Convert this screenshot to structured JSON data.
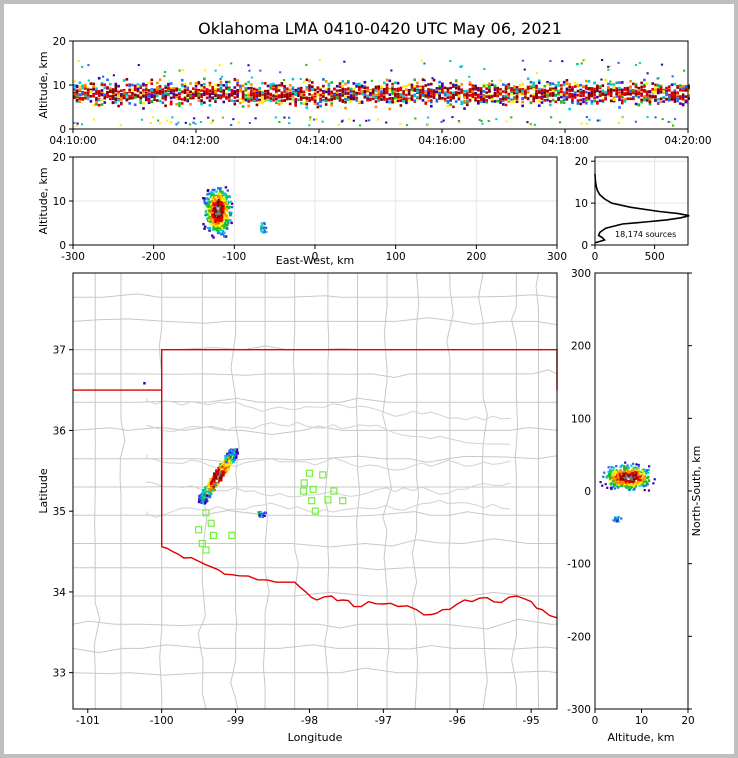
{
  "figure": {
    "title": "Oklahoma LMA 0410-0420 UTC May 06, 2021",
    "source_count_label": "18,174 sources"
  },
  "colors": {
    "state_border": "#e00000",
    "county_lines": "#c8c8c8",
    "stations": "#77ee44",
    "frame_gray": "#bfbfbf",
    "density_scale": [
      "#3b00aa",
      "#2266ff",
      "#00cccc",
      "#22bb22",
      "#ffee00",
      "#ff8800",
      "#dd0000",
      "#880000",
      "#777777",
      "#e8e8e8"
    ]
  },
  "chart_data": [
    {
      "id": "time_height",
      "type": "heatmap",
      "title": "Oklahoma LMA 0410-0420 UTC May 06, 2021",
      "xlabel": "",
      "ylabel": "Altitude, km",
      "x_ticks": [
        "04:10:00",
        "04:12:00",
        "04:14:00",
        "04:16:00",
        "04:18:00",
        "04:20:00"
      ],
      "y_ticks": [
        0,
        10,
        20
      ],
      "xlim": [
        "04:10:00",
        "04:20:00"
      ],
      "ylim": [
        0,
        20
      ],
      "altitude_band_km": [
        2,
        12
      ],
      "peak_altitude_km": 8
    },
    {
      "id": "east_west_altitude",
      "type": "heatmap",
      "xlabel": "East-West, km",
      "ylabel": "Altitude, km",
      "x_ticks": [
        -300,
        -200,
        -100,
        0,
        100,
        200,
        300
      ],
      "y_ticks": [
        0,
        10,
        20
      ],
      "xlim": [
        -300,
        300
      ],
      "ylim": [
        0,
        20
      ],
      "clusters": [
        {
          "x_center_km": -120,
          "x_half_width_km": 22,
          "z_center_km": 8,
          "z_half_height_km": 7
        },
        {
          "x_center_km": -65,
          "x_half_width_km": 4,
          "z_center_km": 4,
          "z_half_height_km": 2
        }
      ]
    },
    {
      "id": "altitude_histogram",
      "type": "line",
      "xlabel": "",
      "ylabel": "",
      "x_ticks": [
        0,
        500
      ],
      "y_ticks": [
        0,
        10,
        20
      ],
      "xlim": [
        0,
        780
      ],
      "ylim": [
        0,
        21
      ],
      "annotation": "18,174 sources",
      "series": [
        {
          "altitude_km": [
            0.5,
            1.2,
            1.8,
            2.3,
            3.0,
            4.0,
            5.0,
            5.5,
            6.0,
            6.5,
            7.0,
            7.5,
            8.0,
            9.0,
            10.0,
            11.0,
            12.0,
            13.0,
            14.0,
            15.0,
            16.0,
            17.0
          ],
          "count": [
            0,
            80,
            60,
            30,
            40,
            90,
            230,
            420,
            600,
            720,
            790,
            700,
            540,
            300,
            140,
            80,
            40,
            20,
            10,
            5,
            2,
            0
          ]
        }
      ]
    },
    {
      "id": "plan_view",
      "type": "scatter",
      "xlabel": "Longitude",
      "ylabel": "Latitude",
      "x_ticks": [
        -101,
        -100,
        -99,
        -98,
        -97,
        -96,
        -95
      ],
      "y_ticks": [
        33,
        34,
        35,
        36,
        37
      ],
      "xlim": [
        -101.2,
        -94.65
      ],
      "ylim": [
        32.55,
        37.95
      ],
      "clusters": [
        {
          "lon_center": -99.25,
          "lat_center": 35.45,
          "lon_half_width": 0.22,
          "lat_half_height": 0.3
        },
        {
          "lon_center": -98.65,
          "lat_center": 34.97,
          "lon_half_width": 0.05,
          "lat_half_height": 0.04
        },
        {
          "lon_center": -100.25,
          "lat_center": 36.6,
          "lon_half_width": 0.01,
          "lat_half_height": 0.01
        }
      ],
      "stations": [
        {
          "lon": -98.0,
          "lat": 35.47
        },
        {
          "lon": -97.82,
          "lat": 35.45
        },
        {
          "lon": -98.07,
          "lat": 35.35
        },
        {
          "lon": -97.95,
          "lat": 35.27
        },
        {
          "lon": -98.08,
          "lat": 35.25
        },
        {
          "lon": -97.67,
          "lat": 35.25
        },
        {
          "lon": -97.75,
          "lat": 35.14
        },
        {
          "lon": -97.55,
          "lat": 35.13
        },
        {
          "lon": -97.97,
          "lat": 35.13
        },
        {
          "lon": -97.92,
          "lat": 35.0
        },
        {
          "lon": -99.4,
          "lat": 34.98
        },
        {
          "lon": -99.33,
          "lat": 34.85
        },
        {
          "lon": -99.5,
          "lat": 34.77
        },
        {
          "lon": -99.3,
          "lat": 34.7
        },
        {
          "lon": -99.05,
          "lat": 34.7
        },
        {
          "lon": -99.45,
          "lat": 34.6
        },
        {
          "lon": -99.4,
          "lat": 34.52
        }
      ]
    },
    {
      "id": "north_south_altitude",
      "type": "heatmap",
      "xlabel": "Altitude, km",
      "ylabel": "North-South, km",
      "x_ticks": [
        0,
        10,
        20
      ],
      "y_ticks": [
        -300,
        -200,
        -100,
        0,
        100,
        200,
        300
      ],
      "xlim": [
        0,
        20
      ],
      "ylim": [
        -300,
        300
      ],
      "clusters": [
        {
          "z_center_km": 7,
          "z_half_width_km": 7,
          "y_center_km": 20,
          "y_half_height_km": 22
        },
        {
          "z_center_km": 4.5,
          "z_half_width_km": 1.5,
          "y_center_km": -37,
          "y_half_height_km": 4
        }
      ]
    }
  ]
}
